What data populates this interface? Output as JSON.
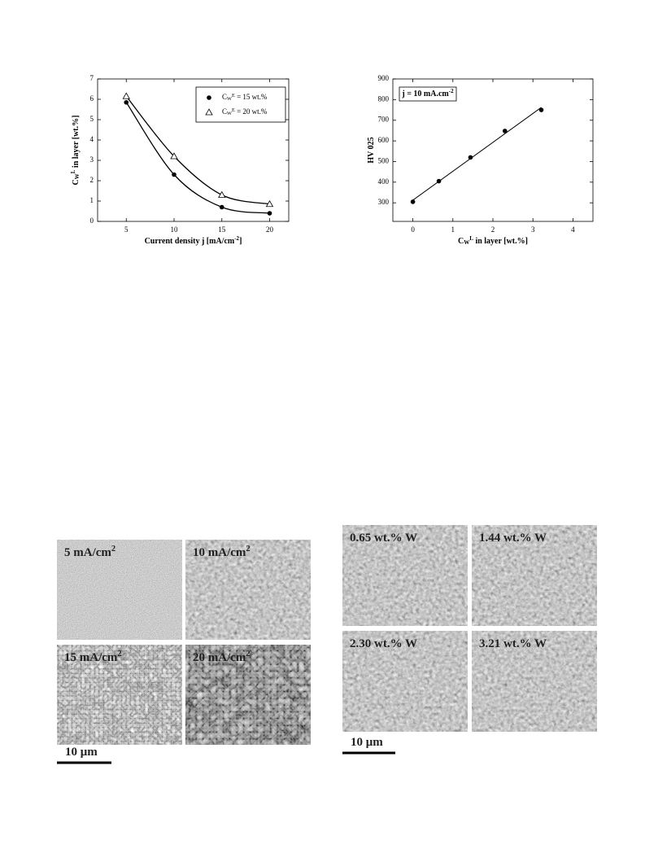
{
  "chart_data": [
    {
      "type": "scatter",
      "fit": "smooth",
      "xlabel": "Current density j [mA/cm^{-2}]",
      "ylabel": "C_{W}^{L} in layer [wt.%]",
      "x": [
        5,
        10,
        15,
        20
      ],
      "series": [
        {
          "name": "C_{W}^{E} = 15 wt.%",
          "marker": "circle",
          "color": "#000000",
          "values": [
            5.85,
            2.3,
            0.7,
            0.4
          ]
        },
        {
          "name": "C_{W}^{E} = 20 wt.%",
          "marker": "triangle",
          "color": "#000000",
          "values": [
            6.15,
            3.2,
            1.3,
            0.85
          ]
        }
      ],
      "xlim": [
        2,
        22
      ],
      "xticks": [
        5,
        10,
        15,
        20
      ],
      "ylim": [
        0,
        7
      ],
      "yticks": [
        0,
        1,
        2,
        3,
        4,
        5,
        6,
        7
      ],
      "legend": "upper right"
    },
    {
      "type": "scatter",
      "fit": "linear",
      "annotation": "j = 10 mA.cm^{-2}",
      "xlabel": "C_{W}^{L} in layer [wt.%]",
      "ylabel": "HV 025",
      "x": [
        0,
        0.65,
        1.44,
        2.3,
        3.21
      ],
      "series": [
        {
          "marker": "circle",
          "color": "#000000",
          "values": [
            305,
            405,
            520,
            648,
            750
          ]
        }
      ],
      "xlim": [
        -0.5,
        4.5
      ],
      "xticks": [
        0,
        1,
        2,
        3,
        4
      ],
      "ylim": [
        210,
        900
      ],
      "yticks": [
        300,
        400,
        500,
        600,
        700,
        800,
        900
      ]
    }
  ],
  "micrographs": [
    {
      "labels": [
        "5 mA/cm^{2}",
        "10 mA/cm^{2}",
        "15 mA/cm^{2}",
        "20 mA/cm^{2}"
      ],
      "scale_bar": "10 μm"
    },
    {
      "labels": [
        "0.65 wt.% W",
        "1.44 wt.% W",
        "2.30 wt.% W",
        "3.21 wt.% W"
      ],
      "scale_bar": "10 μm"
    }
  ]
}
